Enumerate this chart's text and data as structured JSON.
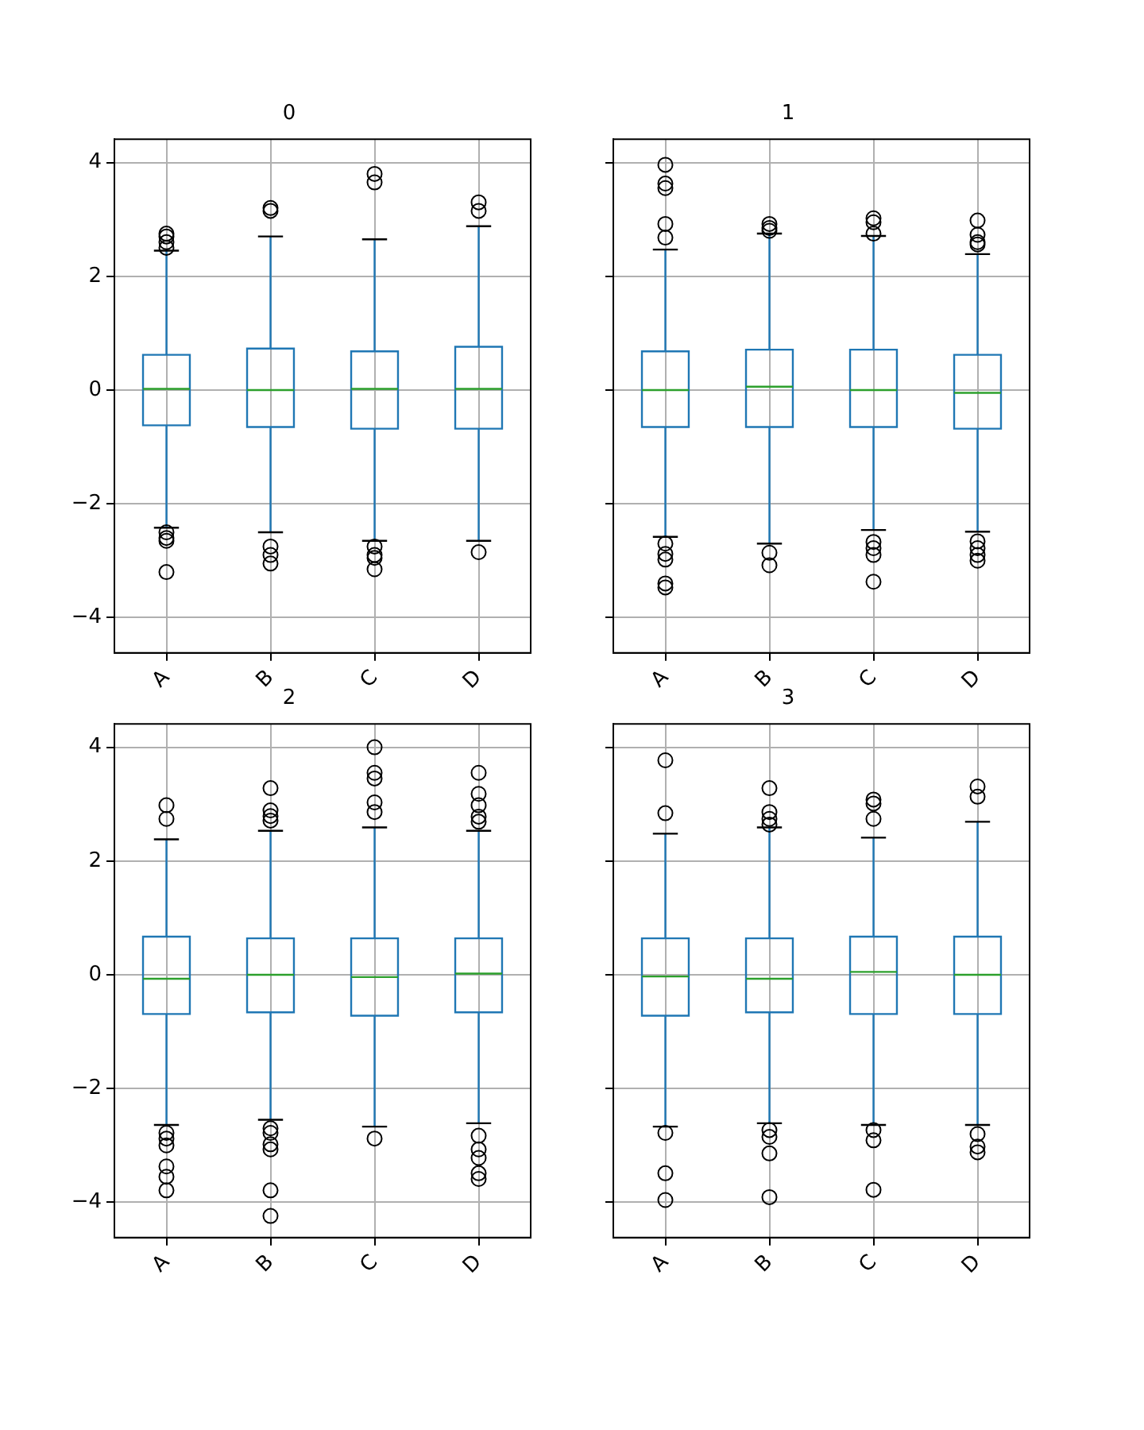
{
  "chart_data": [
    {
      "type": "box",
      "title": "0",
      "categories": [
        "A",
        "B",
        "C",
        "D"
      ],
      "ylim": [
        -4.62,
        4.41
      ],
      "yticks": [
        -4,
        -2,
        0,
        2,
        4
      ],
      "grid": true,
      "series": [
        {
          "color": "#1f77b4",
          "boxes": [
            {
              "low": -2.42,
              "q1": -0.62,
              "median": 0.02,
              "q3": 0.62,
              "high": 2.45,
              "outliers": [
                2.5,
                2.6,
                2.7,
                2.75,
                -2.5,
                -2.6,
                -2.65,
                -3.2
              ]
            },
            {
              "low": -2.5,
              "q1": -0.65,
              "median": 0,
              "q3": 0.73,
              "high": 2.7,
              "outliers": [
                3.15,
                3.2,
                -2.75,
                -2.9,
                -3.05
              ]
            },
            {
              "low": -2.65,
              "q1": -0.68,
              "median": 0.02,
              "q3": 0.68,
              "high": 2.65,
              "outliers": [
                3.65,
                3.8,
                -2.75,
                -2.9,
                -2.95,
                -3.15
              ]
            },
            {
              "low": -2.65,
              "q1": -0.68,
              "median": 0.02,
              "q3": 0.76,
              "high": 2.88,
              "outliers": [
                3.15,
                3.3,
                -2.85
              ]
            }
          ]
        }
      ]
    },
    {
      "type": "box",
      "title": "1",
      "categories": [
        "A",
        "B",
        "C",
        "D"
      ],
      "ylim": [
        -4.62,
        4.41
      ],
      "yticks": [
        -4,
        -2,
        0,
        2,
        4
      ],
      "grid": true,
      "tick_labels": "x",
      "series": [
        {
          "color": "#1f77b4",
          "boxes": [
            {
              "low": -2.58,
              "q1": -0.65,
              "median": 0,
              "q3": 0.68,
              "high": 2.47,
              "outliers": [
                3.96,
                3.63,
                3.55,
                2.92,
                2.68,
                -2.7,
                -2.88,
                -2.98,
                -3.4,
                -3.47
              ]
            },
            {
              "low": -2.7,
              "q1": -0.65,
              "median": 0.06,
              "q3": 0.71,
              "high": 2.75,
              "outliers": [
                2.92,
                2.85,
                2.8,
                -2.86,
                -3.08
              ]
            },
            {
              "low": -2.46,
              "q1": -0.65,
              "median": 0,
              "q3": 0.71,
              "high": 2.71,
              "outliers": [
                3.02,
                2.95,
                2.75,
                -2.67,
                -2.78,
                -2.9,
                -3.37
              ]
            },
            {
              "low": -2.49,
              "q1": -0.68,
              "median": -0.05,
              "q3": 0.62,
              "high": 2.39,
              "outliers": [
                2.98,
                2.73,
                2.6,
                2.56,
                -2.66,
                -2.78,
                -2.9,
                -3.0
              ]
            }
          ]
        }
      ]
    },
    {
      "type": "box",
      "title": "2",
      "categories": [
        "A",
        "B",
        "C",
        "D"
      ],
      "ylim": [
        -4.62,
        4.41
      ],
      "yticks": [
        -4,
        -2,
        0,
        2,
        4
      ],
      "grid": true,
      "series": [
        {
          "color": "#1f77b4",
          "boxes": [
            {
              "low": -2.64,
              "q1": -0.69,
              "median": -0.07,
              "q3": 0.67,
              "high": 2.38,
              "outliers": [
                2.98,
                2.74,
                -2.78,
                -2.88,
                -3.0,
                -3.37,
                -3.55,
                -3.79
              ]
            },
            {
              "low": -2.55,
              "q1": -0.66,
              "median": 0,
              "q3": 0.64,
              "high": 2.53,
              "outliers": [
                3.28,
                2.89,
                2.79,
                2.71,
                -2.7,
                -2.78,
                -2.98,
                -3.07,
                -3.79,
                -4.24
              ]
            },
            {
              "low": -2.67,
              "q1": -0.72,
              "median": -0.04,
              "q3": 0.64,
              "high": 2.59,
              "outliers": [
                4.0,
                3.55,
                3.45,
                3.03,
                2.86,
                -2.88
              ]
            },
            {
              "low": -2.61,
              "q1": -0.66,
              "median": 0.02,
              "q3": 0.64,
              "high": 2.53,
              "outliers": [
                3.55,
                3.18,
                2.98,
                2.78,
                2.69,
                -2.83,
                -3.07,
                -3.22,
                -3.49,
                -3.59
              ]
            }
          ]
        }
      ]
    },
    {
      "type": "box",
      "title": "3",
      "categories": [
        "A",
        "B",
        "C",
        "D"
      ],
      "ylim": [
        -4.62,
        4.41
      ],
      "yticks": [
        -4,
        -2,
        0,
        2,
        4
      ],
      "grid": true,
      "tick_labels": "x",
      "series": [
        {
          "color": "#1f77b4",
          "boxes": [
            {
              "low": -2.67,
              "q1": -0.72,
              "median": -0.03,
              "q3": 0.64,
              "high": 2.48,
              "outliers": [
                3.77,
                2.84,
                -2.78,
                -3.49,
                -3.96
              ]
            },
            {
              "low": -2.61,
              "q1": -0.66,
              "median": -0.07,
              "q3": 0.64,
              "high": 2.59,
              "outliers": [
                3.28,
                2.86,
                2.74,
                2.64,
                -2.73,
                -2.85,
                -3.14,
                -3.91
              ]
            },
            {
              "low": -2.64,
              "q1": -0.69,
              "median": 0.05,
              "q3": 0.67,
              "high": 2.41,
              "outliers": [
                3.08,
                3.01,
                2.74,
                -2.73,
                -2.91,
                -3.78
              ]
            },
            {
              "low": -2.64,
              "q1": -0.69,
              "median": 0,
              "q3": 0.67,
              "high": 2.69,
              "outliers": [
                3.31,
                3.13,
                -2.8,
                -3.02,
                -3.12
              ]
            }
          ]
        }
      ]
    }
  ]
}
